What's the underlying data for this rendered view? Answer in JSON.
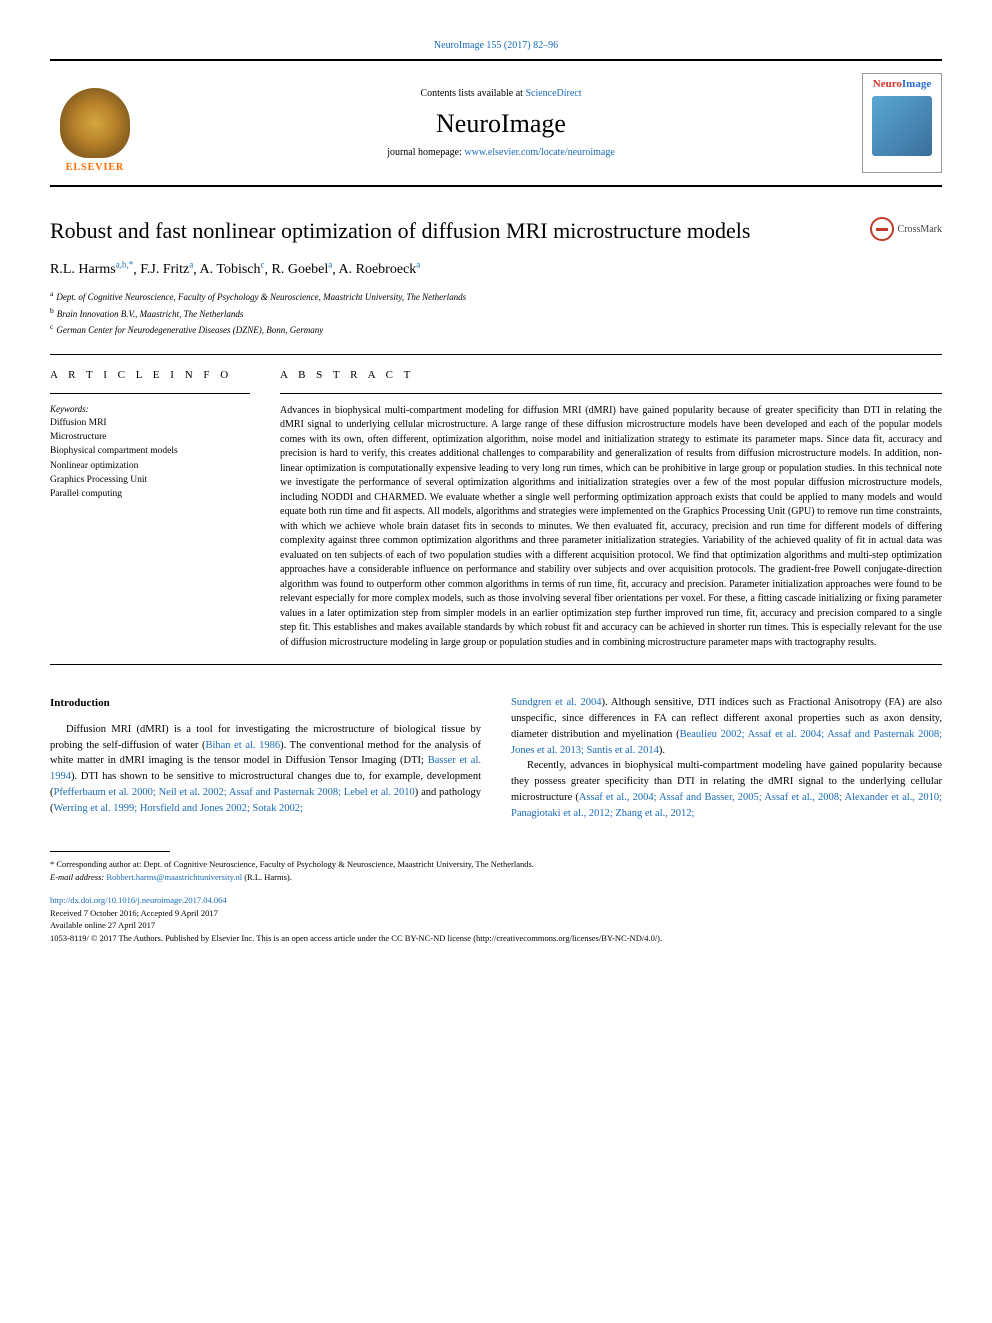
{
  "top_reference": {
    "journal": "NeuroImage",
    "citation": "155 (2017) 82–96"
  },
  "header": {
    "contents_prefix": "Contents lists available at ",
    "contents_link": "ScienceDirect",
    "journal_name": "NeuroImage",
    "homepage_prefix": "journal homepage: ",
    "homepage_url": "www.elsevier.com/locate/neuroimage",
    "publisher_logo_text": "ELSEVIER",
    "cover_brand_neuro": "Neuro",
    "cover_brand_image": "Image"
  },
  "crossmark_label": "CrossMark",
  "title": "Robust and fast nonlinear optimization of diffusion MRI microstructure models",
  "authors_html": "R.L. Harms",
  "authors": [
    {
      "name": "R.L. Harms",
      "sup": "a,b,*"
    },
    {
      "name": "F.J. Fritz",
      "sup": "a"
    },
    {
      "name": "A. Tobisch",
      "sup": "c"
    },
    {
      "name": "R. Goebel",
      "sup": "a"
    },
    {
      "name": "A. Roebroeck",
      "sup": "a"
    }
  ],
  "affiliations": [
    {
      "sup": "a",
      "text": "Dept. of Cognitive Neuroscience, Faculty of Psychology & Neuroscience, Maastricht University, The Netherlands"
    },
    {
      "sup": "b",
      "text": "Brain Innovation B.V., Maastricht, The Netherlands"
    },
    {
      "sup": "c",
      "text": "German Center for Neurodegenerative Diseases (DZNE), Bonn, Germany"
    }
  ],
  "info_heading": "A R T I C L E  I N F O",
  "abstract_heading": "A B S T R A C T",
  "keywords_label": "Keywords:",
  "keywords": [
    "Diffusion MRI",
    "Microstructure",
    "Biophysical compartment models",
    "Nonlinear optimization",
    "Graphics Processing Unit",
    "Parallel computing"
  ],
  "abstract": "Advances in biophysical multi-compartment modeling for diffusion MRI (dMRI) have gained popularity because of greater specificity than DTI in relating the dMRI signal to underlying cellular microstructure. A large range of these diffusion microstructure models have been developed and each of the popular models comes with its own, often different, optimization algorithm, noise model and initialization strategy to estimate its parameter maps. Since data fit, accuracy and precision is hard to verify, this creates additional challenges to comparability and generalization of results from diffusion microstructure models. In addition, non-linear optimization is computationally expensive leading to very long run times, which can be prohibitive in large group or population studies. In this technical note we investigate the performance of several optimization algorithms and initialization strategies over a few of the most popular diffusion microstructure models, including NODDI and CHARMED. We evaluate whether a single well performing optimization approach exists that could be applied to many models and would equate both run time and fit aspects. All models, algorithms and strategies were implemented on the Graphics Processing Unit (GPU) to remove run time constraints, with which we achieve whole brain dataset fits in seconds to minutes. We then evaluated fit, accuracy, precision and run time for different models of differing complexity against three common optimization algorithms and three parameter initialization strategies. Variability of the achieved quality of fit in actual data was evaluated on ten subjects of each of two population studies with a different acquisition protocol. We find that optimization algorithms and multi-step optimization approaches have a considerable influence on performance and stability over subjects and over acquisition protocols. The gradient-free Powell conjugate-direction algorithm was found to outperform other common algorithms in terms of run time, fit, accuracy and precision. Parameter initialization approaches were found to be relevant especially for more complex models, such as those involving several fiber orientations per voxel. For these, a fitting cascade initializing or fixing parameter values in a later optimization step from simpler models in an earlier optimization step further improved run time, fit, accuracy and precision compared to a single step fit. This establishes and makes available standards by which robust fit and accuracy can be achieved in shorter run times. This is especially relevant for the use of diffusion microstructure modeling in large group or population studies and in combining microstructure parameter maps with tractography results.",
  "body": {
    "section_title": "Introduction",
    "left_p1_a": "Diffusion MRI (dMRI) is a tool for investigating the microstructure of biological tissue by probing the self-diffusion of water (",
    "left_p1_ref1": "Bihan et al. 1986",
    "left_p1_b": "). The conventional method for the analysis of white matter in dMRI imaging is the tensor model in Diffusion Tensor Imaging (DTI; ",
    "left_p1_ref2": "Basser et al. 1994",
    "left_p1_c": "). DTI has shown to be sensitive to microstructural changes due to, for example, development (",
    "left_p1_ref3": "Pfefferbaum et al. 2000; Neil et al. 2002; Assaf and Pasternak 2008; Lebel et al. 2010",
    "left_p1_d": ") and pathology (",
    "left_p1_ref4": "Werring et al. 1999; Horsfield and Jones 2002; Sotak 2002;",
    "right_p1_ref1": "Sundgren et al. 2004",
    "right_p1_a": "). Although sensitive, DTI indices such as Fractional Anisotropy (FA) are also unspecific, since differences in FA can reflect different axonal properties such as axon density, diameter distribution and myelination (",
    "right_p1_ref2": "Beaulieu 2002; Assaf et al. 2004; Assaf and Pasternak 2008; Jones et al. 2013; Santis et al. 2014",
    "right_p1_b": ").",
    "right_p2_a": "Recently, advances in biophysical multi-compartment modeling have gained popularity because they possess greater specificity than DTI in relating the dMRI signal to the underlying cellular microstructure (",
    "right_p2_ref1": "Assaf et al., 2004; Assaf and Basser, 2005; Assaf et al., 2008; Alexander et al., 2010; Panagiotaki et al., 2012; Zhang et al., 2012;"
  },
  "footer": {
    "corr_prefix": "* Corresponding author at: Dept. of Cognitive Neuroscience, Faculty of Psychology & Neuroscience, Maastricht University, The Netherlands.",
    "email_label": "E-mail address: ",
    "email": "Robbert.harms@maastrichtuniversity.nl",
    "email_suffix": " (R.L. Harms).",
    "doi": "http://dx.doi.org/10.1016/j.neuroimage.2017.04.064",
    "received": "Received 7 October 2016; Accepted 9 April 2017",
    "available": "Available online 27 April 2017",
    "copyright": "1053-8119/ © 2017 The Authors. Published by Elsevier Inc. This is an open access article under the CC BY-NC-ND license (http://creativecommons.org/licenses/BY-NC-ND/4.0/)."
  },
  "colors": {
    "link": "#1a6bb5",
    "elsevier_orange": "#ff6b00",
    "crossmark_red": "#c23a2a",
    "neuro_red": "#d4342a",
    "image_blue": "#2a6fd4"
  }
}
